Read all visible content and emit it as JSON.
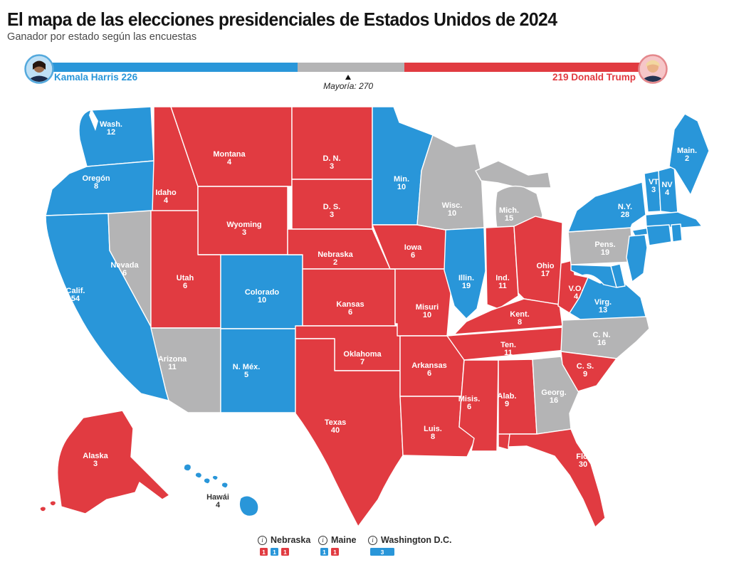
{
  "header": {
    "title": "El mapa de las elecciones presidenciales de Estados Unidos de 2024",
    "subtitle": "Ganador por estado según las encuestas"
  },
  "colors": {
    "dem": "#2996d9",
    "rep": "#e13b41",
    "tossup": "#b4b4b5",
    "harris_text": "#2996d9",
    "trump_text": "#e13b41"
  },
  "tally": {
    "harris_label": "Kamala Harris 226",
    "trump_label": "219 Donald Trump",
    "harris_votes": 226,
    "trump_votes": 219,
    "tossup_votes": 93,
    "total_votes": 538,
    "majority": 270,
    "majority_label": "Mayoría: 270"
  },
  "map": {
    "states": [
      {
        "id": "wa",
        "label": "Wash.",
        "votes": "12",
        "party": "dem"
      },
      {
        "id": "or",
        "label": "Oregón",
        "votes": "8",
        "party": "dem"
      },
      {
        "id": "ca",
        "label": "Calif.",
        "votes": "54",
        "party": "dem"
      },
      {
        "id": "nv",
        "label": "Nevada",
        "votes": "6",
        "party": "tossup"
      },
      {
        "id": "id",
        "label": "Idaho",
        "votes": "4",
        "party": "rep"
      },
      {
        "id": "mt",
        "label": "Montana",
        "votes": "4",
        "party": "rep"
      },
      {
        "id": "wy",
        "label": "Wyoming",
        "votes": "3",
        "party": "rep"
      },
      {
        "id": "ut",
        "label": "Utah",
        "votes": "6",
        "party": "rep"
      },
      {
        "id": "co",
        "label": "Colorado",
        "votes": "10",
        "party": "dem"
      },
      {
        "id": "az",
        "label": "Arizona",
        "votes": "11",
        "party": "tossup"
      },
      {
        "id": "nm",
        "label": "N. Méx.",
        "votes": "5",
        "party": "dem"
      },
      {
        "id": "nd",
        "label": "D. N.",
        "votes": "3",
        "party": "rep"
      },
      {
        "id": "sd",
        "label": "D. S.",
        "votes": "3",
        "party": "rep"
      },
      {
        "id": "ne",
        "label": "Nebraska",
        "votes": "2",
        "party": "rep"
      },
      {
        "id": "ks",
        "label": "Kansas",
        "votes": "6",
        "party": "rep"
      },
      {
        "id": "ok",
        "label": "Oklahoma",
        "votes": "7",
        "party": "rep"
      },
      {
        "id": "tx",
        "label": "Texas",
        "votes": "40",
        "party": "rep"
      },
      {
        "id": "mn",
        "label": "Min.",
        "votes": "10",
        "party": "dem"
      },
      {
        "id": "ia",
        "label": "Iowa",
        "votes": "6",
        "party": "rep"
      },
      {
        "id": "mo",
        "label": "Misuri",
        "votes": "10",
        "party": "rep"
      },
      {
        "id": "ar",
        "label": "Arkansas",
        "votes": "6",
        "party": "rep"
      },
      {
        "id": "la",
        "label": "Luis.",
        "votes": "8",
        "party": "rep"
      },
      {
        "id": "wi",
        "label": "Wisc.",
        "votes": "10",
        "party": "tossup"
      },
      {
        "id": "mi_up",
        "label": "",
        "votes": "",
        "party": "tossup"
      },
      {
        "id": "mi",
        "label": "Mich.",
        "votes": "15",
        "party": "tossup"
      },
      {
        "id": "il",
        "label": "Illin.",
        "votes": "19",
        "party": "dem"
      },
      {
        "id": "in",
        "label": "Ind.",
        "votes": "11",
        "party": "rep"
      },
      {
        "id": "oh",
        "label": "Ohio",
        "votes": "17",
        "party": "rep"
      },
      {
        "id": "ky",
        "label": "Kent.",
        "votes": "8",
        "party": "rep"
      },
      {
        "id": "tn",
        "label": "Ten.",
        "votes": "11",
        "party": "rep"
      },
      {
        "id": "ms",
        "label": "Misis.",
        "votes": "6",
        "party": "rep"
      },
      {
        "id": "al",
        "label": "Alab.",
        "votes": "9",
        "party": "rep"
      },
      {
        "id": "ga",
        "label": "Georg.",
        "votes": "16",
        "party": "tossup"
      },
      {
        "id": "fl",
        "label": "Flo.",
        "votes": "30",
        "party": "rep"
      },
      {
        "id": "wv",
        "label": "V.O.",
        "votes": "4",
        "party": "rep"
      },
      {
        "id": "va",
        "label": "Virg.",
        "votes": "13",
        "party": "dem"
      },
      {
        "id": "nc",
        "label": "C. N.",
        "votes": "16",
        "party": "tossup"
      },
      {
        "id": "sc",
        "label": "C. S.",
        "votes": "9",
        "party": "rep"
      },
      {
        "id": "pa",
        "label": "Pens.",
        "votes": "19",
        "party": "tossup"
      },
      {
        "id": "ny",
        "label": "N.Y.",
        "votes": "28",
        "party": "dem"
      },
      {
        "id": "li",
        "label": "",
        "votes": "",
        "party": "dem"
      },
      {
        "id": "vt",
        "label": "VT",
        "votes": "3",
        "party": "dem"
      },
      {
        "id": "nh",
        "label": "NV",
        "votes": "4",
        "party": "dem"
      },
      {
        "id": "me",
        "label": "Main.",
        "votes": "2",
        "party": "dem"
      },
      {
        "id": "ma",
        "label": "",
        "votes": "",
        "party": "dem"
      },
      {
        "id": "ct",
        "label": "",
        "votes": "",
        "party": "dem"
      },
      {
        "id": "ri",
        "label": "",
        "votes": "",
        "party": "dem"
      },
      {
        "id": "nj",
        "label": "",
        "votes": "",
        "party": "dem"
      },
      {
        "id": "de",
        "label": "",
        "votes": "",
        "party": "dem"
      },
      {
        "id": "md",
        "label": "",
        "votes": "",
        "party": "dem"
      },
      {
        "id": "ak",
        "label": "Alaska",
        "votes": "3",
        "party": "rep"
      },
      {
        "id": "hi",
        "label": "Hawái",
        "votes": "4",
        "party": "dem",
        "dark_label": true
      }
    ]
  },
  "legend": {
    "items": [
      {
        "name": "Nebraska",
        "boxes": [
          {
            "value": "1",
            "party": "rep"
          },
          {
            "value": "1",
            "party": "dem"
          },
          {
            "value": "1",
            "party": "rep"
          }
        ]
      },
      {
        "name": "Maine",
        "boxes": [
          {
            "value": "1",
            "party": "dem"
          },
          {
            "value": "1",
            "party": "rep"
          }
        ]
      },
      {
        "name": "Washington D.C.",
        "boxes": [
          {
            "value": "3",
            "party": "dem",
            "wide": true
          }
        ]
      }
    ]
  }
}
